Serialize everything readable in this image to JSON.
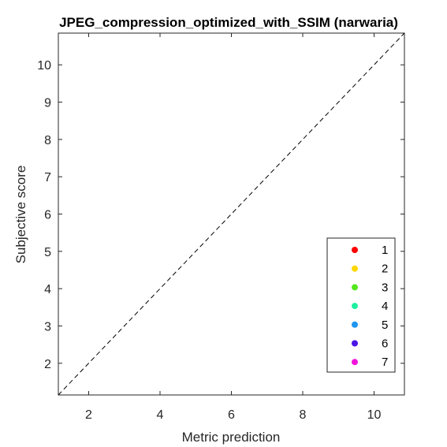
{
  "chart_data": {
    "type": "scatter",
    "title": "JPEG_compression_optimized_with_SSIM (narwaria)",
    "xlabel": "Metric prediction",
    "ylabel": "Subjective score",
    "xlim": [
      1.15,
      10.85
    ],
    "ylim": [
      1.15,
      10.85
    ],
    "xticks": [
      2,
      4,
      6,
      8,
      10
    ],
    "yticks": [
      2,
      3,
      4,
      5,
      6,
      7,
      8,
      9,
      10
    ],
    "grid": false,
    "reference_line": {
      "style": "dashed",
      "from": [
        1.15,
        1.15
      ],
      "to": [
        10.85,
        10.85
      ]
    },
    "legend_position": "bottom-right",
    "series": [
      {
        "name": "1",
        "color": "#ff0000",
        "points": []
      },
      {
        "name": "2",
        "color": "#ffd700",
        "points": []
      },
      {
        "name": "3",
        "color": "#55e61e",
        "points": []
      },
      {
        "name": "4",
        "color": "#1ef0a0",
        "points": []
      },
      {
        "name": "5",
        "color": "#1e96f0",
        "points": []
      },
      {
        "name": "6",
        "color": "#4b14e6",
        "points": []
      },
      {
        "name": "7",
        "color": "#f014dc",
        "points": []
      }
    ]
  }
}
